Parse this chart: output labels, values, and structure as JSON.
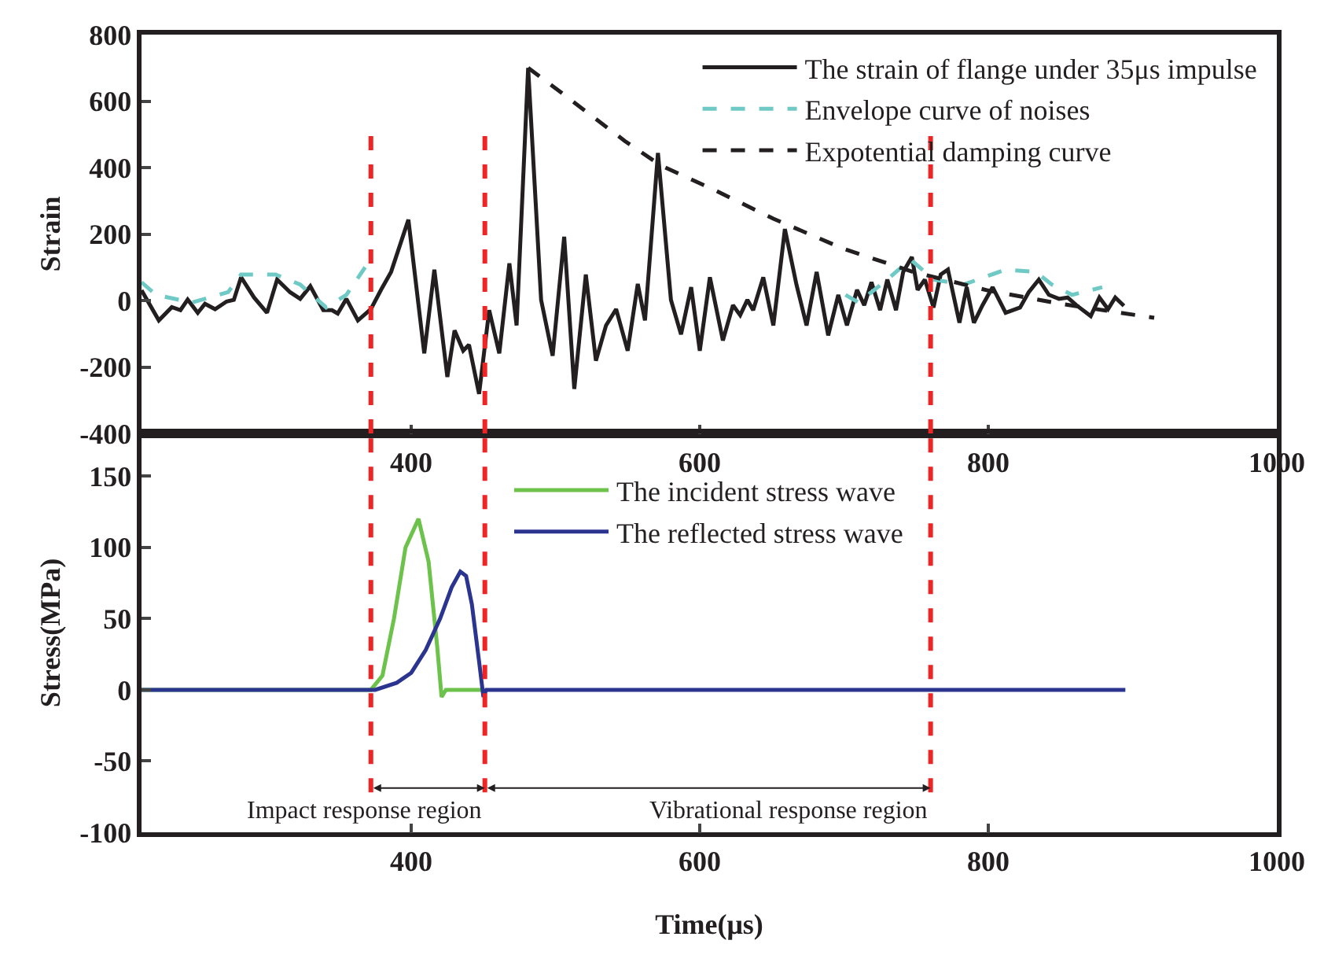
{
  "chart_data": [
    {
      "type": "line",
      "ylabel": "Strain",
      "xlim": [
        213,
        1000
      ],
      "xticks": [
        400,
        600,
        800,
        1000
      ],
      "ylim": [
        -400,
        800
      ],
      "yticks": [
        -400,
        -200,
        0,
        200,
        400,
        600,
        800
      ],
      "grid": false,
      "legend": "top right",
      "marker": "none",
      "series": [
        {
          "name": "The strain of flange under 35μs impulse",
          "color": "#231f20",
          "line_style": "solid",
          "x": [
            213,
            225,
            234,
            240,
            245,
            252,
            257,
            264,
            272,
            277,
            282,
            291,
            300,
            307,
            316,
            323,
            330,
            339,
            345,
            349,
            355,
            363,
            372,
            379,
            386,
            398,
            409,
            416,
            425,
            430,
            436,
            440,
            447,
            454,
            461,
            468,
            473,
            481,
            490,
            498,
            506,
            513,
            521,
            528,
            535,
            542,
            550,
            557,
            562,
            571,
            580,
            587,
            594,
            600,
            607,
            616,
            623,
            628,
            633,
            637,
            644,
            651,
            659,
            667,
            674,
            681,
            689,
            696,
            702,
            709,
            714,
            719,
            725,
            730,
            736,
            741,
            747,
            751,
            756,
            762,
            767,
            772,
            780,
            785,
            790,
            796,
            803,
            812,
            822,
            828,
            835,
            842,
            849,
            855,
            861,
            871,
            877,
            883,
            888,
            894
          ],
          "values": [
            31,
            -60,
            -20,
            -29,
            3,
            -37,
            -10,
            -26,
            -3,
            2,
            70,
            9,
            -37,
            63,
            25,
            5,
            43,
            -29,
            -29,
            -39,
            5,
            -60,
            -26,
            32,
            86,
            243,
            -159,
            93,
            -230,
            -90,
            -151,
            -133,
            -281,
            -29,
            -159,
            112,
            -75,
            700,
            2,
            -166,
            192,
            -266,
            78,
            -181,
            -75,
            -26,
            -151,
            50,
            -60,
            444,
            2,
            -102,
            40,
            -151,
            70,
            -120,
            -14,
            -44,
            2,
            -29,
            70,
            -75,
            215,
            48,
            -75,
            86,
            -105,
            17,
            -75,
            32,
            -14,
            55,
            -29,
            63,
            -29,
            86,
            131,
            32,
            63,
            -21,
            78,
            93,
            -67,
            40,
            -67,
            -14,
            40,
            -37,
            -21,
            25,
            63,
            17,
            5,
            9,
            -14,
            -47,
            9,
            -26,
            9,
            -16
          ]
        },
        {
          "name": "Envelope curve of noises",
          "color": "#6fcac6",
          "line_style": "dashed",
          "x": [
            213,
            223,
            248,
            273,
            282,
            306,
            323,
            341,
            355,
            368,
            400,
            701,
            710,
            730,
            746,
            762,
            783,
            812,
            833,
            844,
            858,
            879
          ],
          "values": [
            55,
            17,
            -6,
            25,
            78,
            78,
            48,
            -21,
            17,
            100,
            null,
            17,
            -6,
            63,
            124,
            63,
            48,
            93,
            86,
            48,
            17,
            40
          ]
        },
        {
          "name": "Expotential damping curve",
          "color": "#231f20",
          "line_style": "dashed",
          "x": [
            481,
            505,
            548,
            573,
            608,
            651,
            700,
            748,
            800,
            850,
            915
          ],
          "values": [
            700,
            622,
            480,
            406,
            337,
            246,
            155,
            86,
            30,
            -10,
            -52
          ]
        }
      ],
      "ref_lines": [
        {
          "axis": "x",
          "value": 372,
          "color": "#ee2524",
          "line_style": "dashed"
        },
        {
          "axis": "x",
          "value": 451,
          "color": "#ee2524",
          "line_style": "dashed"
        },
        {
          "axis": "x",
          "value": 760,
          "color": "#ee2524",
          "line_style": "dashed"
        }
      ]
    },
    {
      "type": "line",
      "xlabel": "Time(μs)",
      "ylabel": "Stress(MPa)",
      "xlim": [
        213,
        1000
      ],
      "xticks": [
        400,
        600,
        800,
        1000
      ],
      "ylim": [
        -100,
        180
      ],
      "yticks": [
        -100,
        -50,
        0,
        50,
        100,
        150
      ],
      "grid": false,
      "legend": "top",
      "marker": "none",
      "series": [
        {
          "name": "The incident stress wave",
          "color": "#6cc24a",
          "line_style": "solid",
          "x": [
            213,
            372,
            380,
            388,
            396,
            405,
            412,
            418,
            421,
            424,
            450
          ],
          "values": [
            0,
            0,
            10,
            50,
            100,
            120,
            90,
            30,
            -5,
            0,
            0
          ]
        },
        {
          "name": "The reflected stress wave",
          "color": "#2b3590",
          "line_style": "solid",
          "x": [
            213,
            375,
            390,
            400,
            410,
            420,
            428,
            434,
            438,
            442,
            447,
            450,
            452,
            895
          ],
          "values": [
            0,
            0,
            5,
            12,
            28,
            50,
            72,
            83,
            80,
            60,
            20,
            -5,
            0,
            0
          ]
        }
      ],
      "ref_lines": [
        {
          "axis": "x",
          "value": 372,
          "color": "#ee2524",
          "line_style": "dashed"
        },
        {
          "axis": "x",
          "value": 451,
          "color": "#ee2524",
          "line_style": "dashed"
        },
        {
          "axis": "x",
          "value": 760,
          "color": "#ee2524",
          "line_style": "dashed"
        }
      ],
      "annotations": [
        {
          "text": "Impact response region",
          "x": 451,
          "y": -69
        },
        {
          "text": "Vibrational response region",
          "x": 760,
          "y": -69
        }
      ]
    }
  ]
}
